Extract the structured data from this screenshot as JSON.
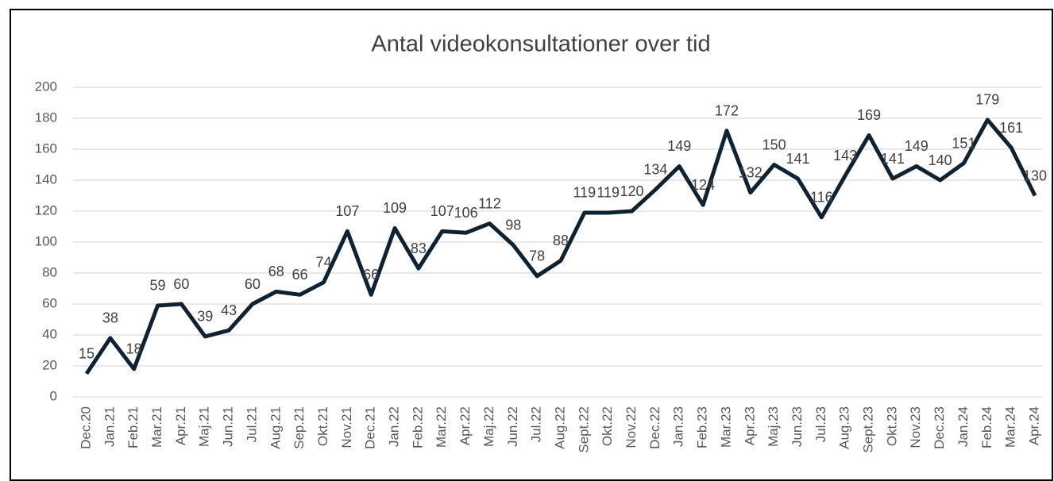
{
  "chart_data": {
    "type": "line",
    "title": "Antal videokonsultationer over tid",
    "categories": [
      "Dec.20",
      "Jan.21",
      "Feb.21",
      "Mar.21",
      "Apr.21",
      "Maj.21",
      "Jun.21",
      "Jul.21",
      "Aug.21",
      "Sep.21",
      "Okt.21",
      "Nov.21",
      "Dec.21",
      "Jan.22",
      "Feb.22",
      "Mar.22",
      "Apr.22",
      "Maj.22",
      "Jun.22",
      "Jul.22",
      "Aug.22",
      "Sept.22",
      "Okt.22",
      "Nov.22",
      "Dec.22",
      "Jan.23",
      "Feb.23",
      "Mar.23",
      "Apr.23",
      "Maj.23",
      "Jun.23",
      "Jul.23",
      "Aug.23",
      "Sept.23",
      "Okt.23",
      "Nov.23",
      "Dec.23",
      "Jan.24",
      "Feb.24",
      "Mar.24",
      "Apr.24"
    ],
    "values": [
      15,
      38,
      18,
      59,
      60,
      39,
      43,
      60,
      68,
      66,
      74,
      107,
      66,
      109,
      83,
      107,
      106,
      112,
      98,
      78,
      88,
      119,
      119,
      120,
      134,
      149,
      124,
      172,
      132,
      150,
      141,
      116,
      143,
      169,
      141,
      149,
      140,
      151,
      179,
      161,
      130
    ],
    "color": "#0d2233",
    "ylim": [
      0,
      200
    ],
    "yticks": [
      0,
      20,
      40,
      60,
      80,
      100,
      120,
      140,
      160,
      180,
      200
    ],
    "grid": true
  }
}
